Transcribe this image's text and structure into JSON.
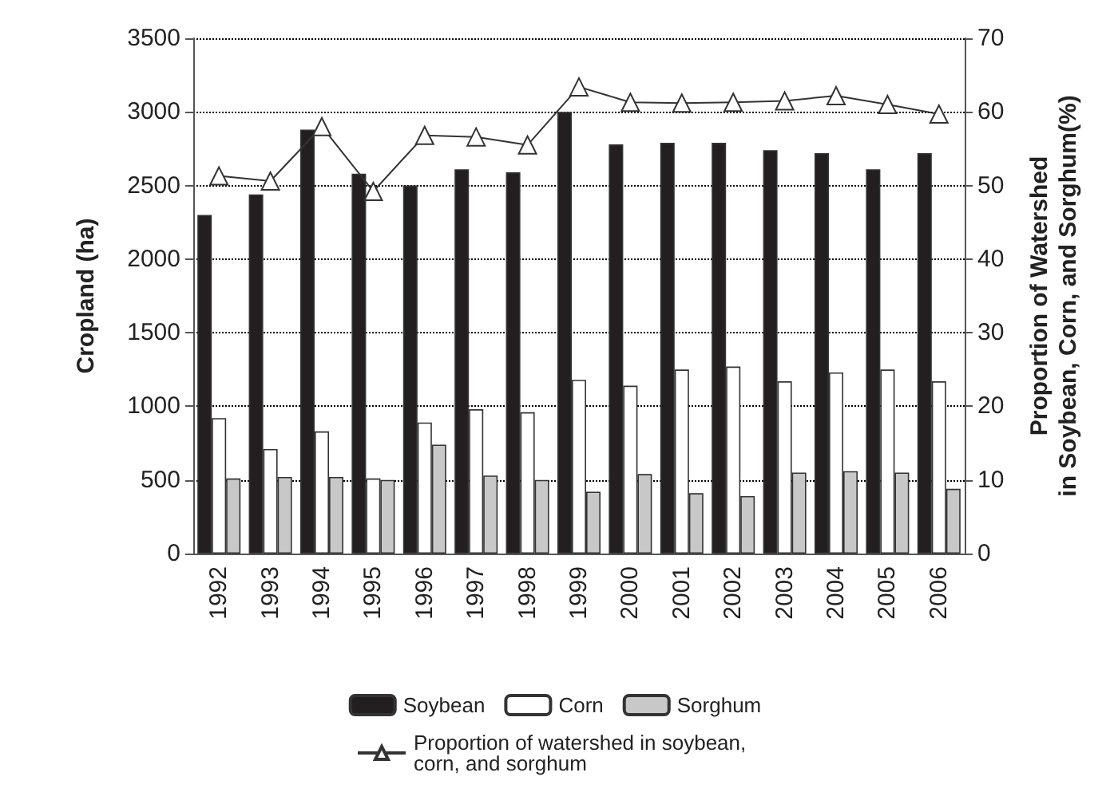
{
  "chart_data": {
    "type": "bar",
    "ylabel": "Cropland (ha)",
    "y2label": "Proportion of Watershed\nin Soybean, Corn, and Sorghum(%)",
    "categories": [
      "1992",
      "1993",
      "1994",
      "1995",
      "1996",
      "1997",
      "1998",
      "1999",
      "2000",
      "2001",
      "2002",
      "2003",
      "2004",
      "2005",
      "2006"
    ],
    "series": [
      {
        "name": "Soybean",
        "color": "#231f20",
        "values": [
          2300,
          2440,
          2880,
          2580,
          2500,
          2610,
          2590,
          3000,
          2780,
          2790,
          2790,
          2740,
          2720,
          2610,
          2720
        ]
      },
      {
        "name": "Corn",
        "color": "#ffffff",
        "values": [
          920,
          710,
          830,
          510,
          890,
          980,
          960,
          1180,
          1140,
          1250,
          1270,
          1170,
          1230,
          1250,
          1170
        ]
      },
      {
        "name": "Sorghum",
        "color": "#c8c8c8",
        "values": [
          510,
          520,
          520,
          500,
          740,
          530,
          500,
          420,
          540,
          410,
          390,
          550,
          560,
          550,
          440
        ]
      },
      {
        "name": "Proportion of watershed in soybean,\ncorn, and sorghum",
        "type": "line",
        "axis": "y2",
        "color": "#333333",
        "marker": "triangle",
        "values": [
          51.3,
          50.6,
          58.0,
          49.2,
          56.8,
          56.6,
          55.5,
          63.4,
          61.3,
          61.2,
          61.3,
          61.5,
          62.2,
          61.0,
          59.7
        ]
      }
    ],
    "ylim": [
      0,
      3500
    ],
    "yticks": [
      0,
      500,
      1000,
      1500,
      2000,
      2500,
      3000,
      3500
    ],
    "y2lim": [
      0,
      70
    ],
    "y2ticks": [
      0,
      10,
      20,
      30,
      40,
      50,
      60,
      70
    ],
    "grid": "y",
    "legend": "bottom"
  }
}
